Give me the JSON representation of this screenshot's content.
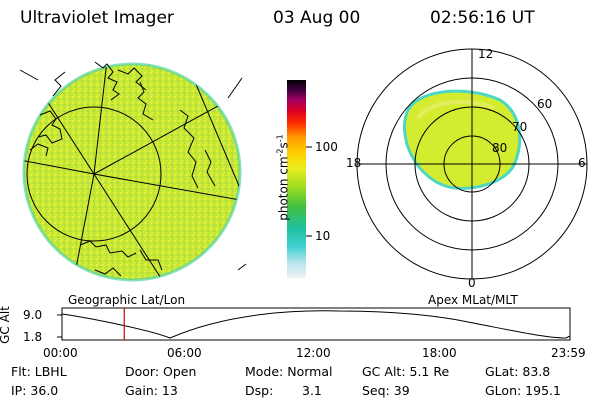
{
  "header": {
    "instrument": "Ultraviolet Imager",
    "date": "03 Aug 00",
    "time": "02:56:16 UT"
  },
  "colorbar": {
    "unit_prefix": "photon cm",
    "unit_exp1": "-2",
    "unit_mid": "s",
    "unit_exp2": "-1",
    "tick_100": "100",
    "tick_10": "10"
  },
  "geo_panel": {
    "label": "Geographic Lat/Lon"
  },
  "polar_panel": {
    "label": "Apex MLat/MLT",
    "mlt_12": "12",
    "mlt_18": "18",
    "mlt_6": "6",
    "mlt_0": "0",
    "lat_60": "60",
    "lat_70": "70",
    "lat_80": "80"
  },
  "altitude_plot": {
    "ylabel": "GC Alt",
    "y_max": "9.0",
    "y_min": "1.8",
    "x_ticks": [
      "00:00",
      "06:00",
      "12:00",
      "18:00",
      "23:59"
    ],
    "current_marker_hour": 2.94
  },
  "footer": {
    "flt": "Flt: LBHL",
    "ip": "IP: 36.0",
    "door": "Door: Open",
    "gain": "Gain: 13",
    "mode": "Mode: Normal",
    "dsp_label": "Dsp:",
    "dsp_value": "3.1",
    "gc_alt": "GC Alt: 5.1 Re",
    "seq": "Seq: 39",
    "glat": "GLat: 83.8",
    "glon": "GLon: 195.1"
  },
  "colors": {
    "marker": "#d00000",
    "aurora_fill": "#d7ee2a",
    "aurora_edge": "#3fd8c8"
  }
}
